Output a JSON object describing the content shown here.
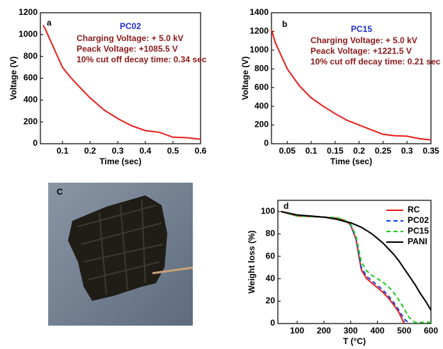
{
  "chart_data": [
    {
      "type": "line",
      "panel_label": "a",
      "title": "PC02",
      "annotations": [
        "Charging Voltage: + 5.0 kV",
        "Peack Voltage: +1085.5 V",
        "10% cut off decay time: 0.34 sec"
      ],
      "x_label": "Time (sec)",
      "y_label": "Voltage (V)",
      "x": [
        0.03,
        0.04,
        0.05,
        0.075,
        0.1,
        0.125,
        0.15,
        0.2,
        0.25,
        0.3,
        0.35,
        0.4,
        0.45,
        0.5,
        0.55,
        0.6
      ],
      "series": [
        {
          "color": "#e8201c",
          "style": "solid",
          "values": [
            1085.5,
            1040,
            980,
            840,
            700,
            620,
            550,
            420,
            310,
            230,
            165,
            120,
            105,
            60,
            55,
            40
          ]
        }
      ],
      "xlim": [
        0.02,
        0.6
      ],
      "xticks": [
        0.1,
        0.2,
        0.3,
        0.4,
        0.5,
        0.6
      ],
      "ylim": [
        0,
        1200
      ],
      "yticks": [
        0,
        200,
        400,
        600,
        800,
        1000,
        1200
      ]
    },
    {
      "type": "line",
      "panel_label": "b",
      "title": "PC15",
      "annotations": [
        "Charging Voltage: + 5.0 kV",
        "Peack Voltage: +1221.5 V",
        "10% cut off decay time: 0.21 sec"
      ],
      "x_label": "Time (sec)",
      "y_label": "Voltage (V)",
      "x": [
        0.017,
        0.025,
        0.05,
        0.075,
        0.1,
        0.125,
        0.15,
        0.175,
        0.2,
        0.225,
        0.25,
        0.275,
        0.3,
        0.325,
        0.35
      ],
      "series": [
        {
          "color": "#e8201c",
          "style": "solid",
          "values": [
            1221.5,
            1080,
            800,
            620,
            490,
            400,
            320,
            250,
            200,
            150,
            100,
            85,
            80,
            55,
            40
          ]
        }
      ],
      "xlim": [
        0.017,
        0.35
      ],
      "xticks": [
        0.05,
        0.1,
        0.15,
        0.2,
        0.25,
        0.3,
        0.35
      ],
      "ylim": [
        0,
        1400
      ],
      "yticks": [
        0,
        200,
        400,
        600,
        800,
        1000,
        1200,
        1400
      ]
    },
    {
      "type": "line",
      "panel_label": "d",
      "x_label": "T (°C)",
      "y_label": "Weight loss (%)",
      "legend": "top-right",
      "x": [
        40,
        100,
        150,
        200,
        250,
        280,
        300,
        320,
        340,
        360,
        380,
        400,
        420,
        440,
        460,
        480,
        500,
        520,
        540,
        560,
        580,
        600
      ],
      "series": [
        {
          "name": "RC",
          "color": "#e8201c",
          "style": "solid",
          "values": [
            100,
            96,
            95.5,
            95,
            94,
            92,
            88,
            75,
            48,
            40,
            36,
            32,
            28,
            23,
            17,
            10,
            0,
            null,
            null,
            null,
            null,
            null
          ]
        },
        {
          "name": "PC02",
          "color": "#1f3fe0",
          "style": "dashed",
          "values": [
            100,
            96,
            95.5,
            95,
            94.5,
            92,
            88,
            76,
            50,
            42,
            38,
            34,
            30,
            25,
            19,
            12,
            4,
            0,
            null,
            null,
            null,
            null
          ]
        },
        {
          "name": "PC15",
          "color": "#22cc22",
          "style": "dashed",
          "values": [
            100,
            96,
            95.5,
            95,
            94.5,
            92,
            89,
            78,
            55,
            47,
            43,
            40,
            37,
            33,
            28,
            21,
            13,
            5,
            1,
            1,
            1,
            1
          ]
        },
        {
          "name": "PANI",
          "color": "#000000",
          "style": "solid",
          "values": [
            100,
            97,
            96,
            95,
            93,
            91,
            90,
            88,
            86,
            83,
            80,
            76,
            72,
            67,
            62,
            56,
            49,
            42,
            35,
            27,
            20,
            12
          ]
        }
      ],
      "xlim": [
        28,
        600
      ],
      "xticks": [
        100,
        200,
        300,
        400,
        500,
        600
      ],
      "ylim": [
        0,
        110
      ],
      "yticks": [
        0,
        20,
        40,
        60,
        80,
        100
      ]
    }
  ],
  "photo": {
    "label": "C"
  }
}
